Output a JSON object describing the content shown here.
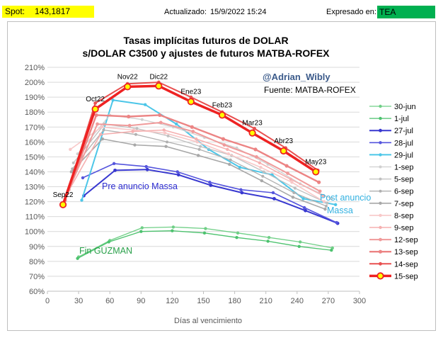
{
  "header": {
    "spot_label": "Spot:",
    "spot_value": "143,1817",
    "updated_label": "Actualizado:",
    "updated_value": "15/9/2022 15:24",
    "expressed_label": "Expresado en:",
    "expressed_value": "TEA"
  },
  "chart_data": {
    "type": "line",
    "title": "Tasas implícitas futuros de DOLAR",
    "subtitle": "s/DOLAR C3500 y ajustes de futuros MATBA-ROFEX",
    "xlabel": "Días al vencimiento",
    "ylabel": "",
    "xlim": [
      0,
      300
    ],
    "ylim": [
      60,
      210
    ],
    "x_ticks": [
      0,
      30,
      60,
      90,
      120,
      150,
      180,
      210,
      240,
      270,
      300
    ],
    "y_ticks": [
      60,
      70,
      80,
      90,
      100,
      110,
      120,
      130,
      140,
      150,
      160,
      170,
      180,
      190,
      200,
      210
    ],
    "y_unit": "%",
    "grid": "horizontal",
    "legend_position": "right",
    "annotations": {
      "author": "@Adrian_Wibly",
      "source": "Fuente: MATBA-ROFEX",
      "pre": "Pre anuncio Massa",
      "post1": "Post anuncio",
      "post2": "Massa",
      "fin": "Fin GUZMAN"
    },
    "point_labels": [
      {
        "text": "Sep22",
        "x": 15,
        "y": 118
      },
      {
        "text": "Oct22",
        "x": 46,
        "y": 182
      },
      {
        "text": "Nov22",
        "x": 77,
        "y": 197
      },
      {
        "text": "Dic22",
        "x": 107,
        "y": 197
      },
      {
        "text": "Ene23",
        "x": 138,
        "y": 187
      },
      {
        "text": "Feb23",
        "x": 168,
        "y": 178
      },
      {
        "text": "Mar23",
        "x": 197,
        "y": 166
      },
      {
        "text": "Abr23",
        "x": 227,
        "y": 154
      },
      {
        "text": "May23",
        "x": 258,
        "y": 140
      }
    ],
    "series": [
      {
        "name": "30-jun",
        "color": "#6fcf86",
        "width": 1.3,
        "marker": 2.2,
        "points": [
          [
            30,
            83
          ],
          [
            60,
            94
          ],
          [
            91,
            102.5
          ],
          [
            121,
            103
          ],
          [
            152,
            102
          ],
          [
            183,
            99
          ],
          [
            213,
            96
          ],
          [
            243,
            93
          ],
          [
            274,
            89
          ]
        ]
      },
      {
        "name": "1-jul",
        "color": "#4cc26e",
        "width": 1.3,
        "marker": 2.2,
        "points": [
          [
            29,
            82
          ],
          [
            59,
            93
          ],
          [
            90,
            100
          ],
          [
            120,
            100.5
          ],
          [
            151,
            99
          ],
          [
            182,
            96
          ],
          [
            212,
            93.5
          ],
          [
            242,
            90
          ],
          [
            273,
            87.5
          ]
        ]
      },
      {
        "name": "27-jul",
        "color": "#3838d0",
        "width": 2,
        "marker": 2.4,
        "points": [
          [
            35,
            124
          ],
          [
            65,
            141
          ],
          [
            96,
            141.5
          ],
          [
            126,
            138
          ],
          [
            157,
            131
          ],
          [
            187,
            126
          ],
          [
            218,
            122
          ],
          [
            248,
            114
          ],
          [
            279,
            105.5
          ]
        ]
      },
      {
        "name": "28-jul",
        "color": "#5555dd",
        "width": 1.6,
        "marker": 2.2,
        "points": [
          [
            34,
            136
          ],
          [
            64,
            145.5
          ],
          [
            95,
            143.5
          ],
          [
            125,
            140
          ],
          [
            156,
            133
          ],
          [
            186,
            128
          ],
          [
            217,
            126
          ],
          [
            247,
            116
          ],
          [
            278,
            106
          ]
        ]
      },
      {
        "name": "29-jul",
        "color": "#4cc6e8",
        "width": 2,
        "marker": 2.2,
        "points": [
          [
            33,
            121
          ],
          [
            63,
            188
          ],
          [
            94,
            185
          ],
          [
            124,
            172
          ],
          [
            155,
            155
          ],
          [
            185,
            143
          ],
          [
            216,
            138
          ],
          [
            246,
            122
          ],
          [
            277,
            118
          ]
        ]
      },
      {
        "name": "1-sep",
        "color": "#d0d0d0",
        "width": 1.3,
        "marker": 2,
        "points": [
          [
            29,
            152
          ],
          [
            60,
            178
          ],
          [
            91,
            175
          ],
          [
            121,
            170
          ],
          [
            151,
            163
          ],
          [
            182,
            156
          ],
          [
            212,
            145
          ],
          [
            243,
            132
          ],
          [
            273,
            122
          ]
        ]
      },
      {
        "name": "5-sep",
        "color": "#c0c0c0",
        "width": 1.3,
        "marker": 2,
        "points": [
          [
            25,
            146
          ],
          [
            55,
            172
          ],
          [
            86,
            169
          ],
          [
            116,
            164
          ],
          [
            147,
            157
          ],
          [
            177,
            151
          ],
          [
            208,
            140
          ],
          [
            238,
            129
          ],
          [
            269,
            119
          ]
        ]
      },
      {
        "name": "6-sep",
        "color": "#b0b0b0",
        "width": 1.3,
        "marker": 2,
        "points": [
          [
            24,
            142
          ],
          [
            54,
            168
          ],
          [
            85,
            165
          ],
          [
            115,
            160
          ],
          [
            146,
            155
          ],
          [
            176,
            148
          ],
          [
            207,
            137
          ],
          [
            237,
            126
          ],
          [
            268,
            117
          ]
        ]
      },
      {
        "name": "7-sep",
        "color": "#a8a8a8",
        "width": 1.6,
        "marker": 2.2,
        "points": [
          [
            23,
            140
          ],
          [
            53,
            162
          ],
          [
            84,
            158
          ],
          [
            114,
            157
          ],
          [
            145,
            151
          ],
          [
            175,
            145
          ],
          [
            206,
            134
          ],
          [
            236,
            123
          ],
          [
            267,
            115
          ]
        ]
      },
      {
        "name": "8-sep",
        "color": "#f8c8c8",
        "width": 1.6,
        "marker": 2.2,
        "points": [
          [
            22,
            155
          ],
          [
            52,
            170
          ],
          [
            83,
            168
          ],
          [
            113,
            166
          ],
          [
            144,
            160
          ],
          [
            174,
            152
          ],
          [
            205,
            143
          ],
          [
            235,
            133
          ],
          [
            266,
            120
          ]
        ]
      },
      {
        "name": "9-sep",
        "color": "#f5b0b0",
        "width": 1.6,
        "marker": 2.2,
        "points": [
          [
            21,
            128
          ],
          [
            51,
            165
          ],
          [
            82,
            167
          ],
          [
            112,
            168
          ],
          [
            143,
            162
          ],
          [
            173,
            155
          ],
          [
            204,
            146
          ],
          [
            234,
            135
          ],
          [
            265,
            124
          ]
        ]
      },
      {
        "name": "12-sep",
        "color": "#f09a9a",
        "width": 2,
        "marker": 2.4,
        "points": [
          [
            18,
            124
          ],
          [
            48,
            172
          ],
          [
            79,
            171
          ],
          [
            109,
            173
          ],
          [
            140,
            167
          ],
          [
            170,
            158
          ],
          [
            201,
            150
          ],
          [
            231,
            139
          ],
          [
            262,
            127
          ]
        ]
      },
      {
        "name": "13-sep",
        "color": "#ec8484",
        "width": 2.4,
        "marker": 2.6,
        "points": [
          [
            17,
            121
          ],
          [
            47,
            178
          ],
          [
            78,
            177
          ],
          [
            108,
            178
          ],
          [
            139,
            170
          ],
          [
            169,
            162
          ],
          [
            200,
            155
          ],
          [
            230,
            144
          ],
          [
            261,
            133
          ]
        ]
      },
      {
        "name": "14-sep",
        "color": "#e85050",
        "width": 2,
        "marker": 2.4,
        "points": [
          [
            16,
            119
          ],
          [
            46,
            186
          ],
          [
            77,
            199
          ],
          [
            107,
            200
          ],
          [
            138,
            190
          ],
          [
            168,
            180
          ],
          [
            199,
            169
          ],
          [
            229,
            156
          ],
          [
            260,
            141
          ]
        ]
      },
      {
        "name": "15-sep",
        "color": "#ee2222",
        "width": 3.5,
        "marker": 4.2,
        "marker_fill": "#ffff00",
        "points": [
          [
            15,
            118
          ],
          [
            46,
            182
          ],
          [
            77,
            197
          ],
          [
            107,
            197.5
          ],
          [
            138,
            187
          ],
          [
            168,
            178
          ],
          [
            197,
            166
          ],
          [
            227,
            154
          ],
          [
            258,
            140
          ]
        ]
      }
    ]
  }
}
